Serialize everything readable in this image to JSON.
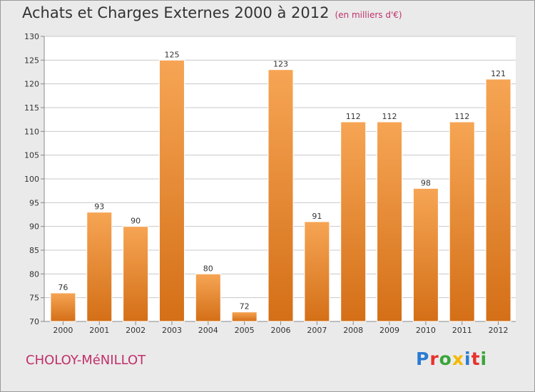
{
  "header": {
    "title": "Achats et Charges Externes 2000 à 2012",
    "subtitle": "(en milliers d'€)"
  },
  "footer": {
    "commune": "CHOLOY-MéNILLOT",
    "logo_letters": [
      "P",
      "r",
      "o",
      "x",
      "i",
      "t",
      "i"
    ],
    "logo_colors": [
      "#2a7bd3",
      "#e8322e",
      "#3aa53a",
      "#f5b800",
      "#2a7bd3",
      "#e8322e",
      "#3aa53a"
    ]
  },
  "colors": {
    "bar_top": "#f6a554",
    "bar_bottom": "#d46f17",
    "bar_edge": "#ffffff",
    "grid": "#c8c8c8",
    "plot_bg": "#ffffff"
  },
  "chart_data": {
    "type": "bar",
    "title": "Achats et Charges Externes 2000 à 2012",
    "subtitle": "(en milliers d'€)",
    "categories": [
      "2000",
      "2001",
      "2002",
      "2003",
      "2004",
      "2005",
      "2006",
      "2007",
      "2008",
      "2009",
      "2010",
      "2011",
      "2012"
    ],
    "values": [
      76,
      93,
      90,
      125,
      80,
      72,
      123,
      91,
      112,
      112,
      98,
      112,
      121
    ],
    "ylim": [
      70,
      130
    ],
    "yticks": [
      70,
      75,
      80,
      85,
      90,
      95,
      100,
      105,
      110,
      115,
      120,
      125,
      130
    ],
    "grid": true
  }
}
